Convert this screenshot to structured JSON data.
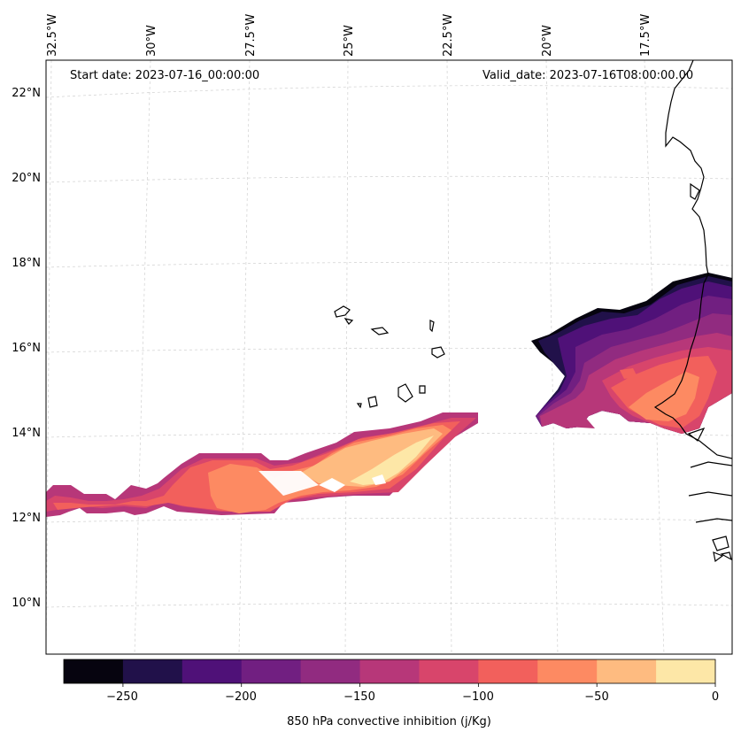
{
  "map": {
    "start_date": "Start date: 2023-07-16_00:00:00",
    "valid_date": "Valid_date: 2023-07-16T08:00:00.00",
    "variable": "850 hPa convective inhibition",
    "lat_labels": [
      "22°N",
      "20°N",
      "18°N",
      "16°N",
      "14°N",
      "12°N",
      "10°N"
    ],
    "lon_labels": [
      "32.5°W",
      "30°W",
      "27.5°W",
      "25°W",
      "22.5°W",
      "20°W",
      "17.5°W"
    ],
    "region": "Eastern tropical Atlantic / Cape Verde / West Africa coast"
  },
  "colorbar": {
    "label": "850 hPa convective inhibition (j/Kg)",
    "tick_labels": [
      "−250",
      "−200",
      "−150",
      "−100",
      "−50",
      "0"
    ],
    "levels": [
      -275,
      -250,
      -225,
      -200,
      -175,
      -150,
      -125,
      -100,
      -75,
      -50,
      -25,
      0
    ],
    "colors": [
      "#06040f",
      "#21114a",
      "#4f1178",
      "#711f81",
      "#912b80",
      "#b73779",
      "#d8456b",
      "#f2605c",
      "#fd8a62",
      "#febb80",
      "#fde7a7"
    ]
  }
}
